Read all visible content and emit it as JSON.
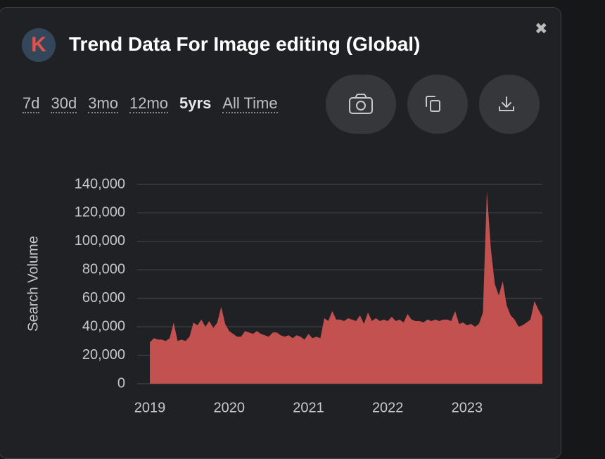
{
  "header": {
    "logo": "K",
    "title": "Trend Data For Image editing (Global)",
    "close": "✖"
  },
  "time_ranges": [
    "7d",
    "30d",
    "3mo",
    "12mo",
    "5yrs",
    "All Time"
  ],
  "chart_data": {
    "type": "area",
    "y_label": "Search Volume",
    "color": "#c25150",
    "grid": true,
    "x": [
      2019.0,
      2019.05,
      2019.1,
      2019.15,
      2019.2,
      2019.25,
      2019.3,
      2019.35,
      2019.4,
      2019.45,
      2019.5,
      2019.55,
      2019.6,
      2019.65,
      2019.7,
      2019.75,
      2019.8,
      2019.85,
      2019.9,
      2019.95,
      2020.0,
      2020.05,
      2020.1,
      2020.15,
      2020.2,
      2020.25,
      2020.3,
      2020.35,
      2020.4,
      2020.45,
      2020.5,
      2020.55,
      2020.6,
      2020.65,
      2020.7,
      2020.75,
      2020.8,
      2020.85,
      2020.9,
      2020.95,
      2021.0,
      2021.05,
      2021.1,
      2021.15,
      2021.2,
      2021.25,
      2021.3,
      2021.35,
      2021.4,
      2021.45,
      2021.5,
      2021.55,
      2021.6,
      2021.65,
      2021.7,
      2021.75,
      2021.8,
      2021.85,
      2021.9,
      2021.95,
      2022.0,
      2022.05,
      2022.1,
      2022.15,
      2022.2,
      2022.25,
      2022.3,
      2022.35,
      2022.4,
      2022.45,
      2022.5,
      2022.55,
      2022.6,
      2022.65,
      2022.7,
      2022.75,
      2022.8,
      2022.85,
      2022.9,
      2022.95,
      2023.0,
      2023.05,
      2023.1,
      2023.15,
      2023.2,
      2023.25,
      2023.3,
      2023.35,
      2023.4,
      2023.45,
      2023.5,
      2023.55,
      2023.6,
      2023.65,
      2023.7,
      2023.75,
      2023.8,
      2023.85,
      2023.9,
      2023.95
    ],
    "values": [
      29000,
      32000,
      31000,
      31000,
      30000,
      32000,
      43000,
      30000,
      31000,
      30000,
      33000,
      43000,
      41000,
      45000,
      40000,
      44000,
      39000,
      43000,
      54000,
      42000,
      37000,
      35000,
      33000,
      33000,
      37000,
      36000,
      35000,
      37000,
      35000,
      34000,
      33000,
      36000,
      36000,
      34000,
      33000,
      34000,
      32000,
      34000,
      33000,
      31000,
      35000,
      32000,
      33000,
      32000,
      46000,
      44000,
      51000,
      45000,
      45000,
      44000,
      46000,
      45000,
      44000,
      48000,
      42000,
      50000,
      44000,
      46000,
      44000,
      45000,
      44000,
      47000,
      44000,
      45000,
      43000,
      49000,
      45000,
      44000,
      44000,
      43000,
      45000,
      44000,
      45000,
      44000,
      45000,
      45000,
      44000,
      51000,
      42000,
      43000,
      41000,
      42000,
      40000,
      42000,
      50000,
      135000,
      95000,
      70000,
      62000,
      72000,
      55000,
      48000,
      45000,
      40000,
      41000,
      43000,
      45000,
      58000,
      52000,
      47000
    ],
    "xlim": [
      2018.84,
      2023.95
    ],
    "xticks": [
      2019,
      2020,
      2021,
      2022,
      2023
    ],
    "ylim": [
      0,
      140000
    ],
    "yticks": [
      0,
      {
        "value": 20000,
        "label": "20,000"
      },
      {
        "value": 40000,
        "label": "40,000"
      },
      {
        "value": 60000,
        "label": "60,000"
      },
      {
        "value": 80000,
        "label": "80,000"
      },
      {
        "value": 100000,
        "label": "100,000"
      },
      {
        "value": 120000,
        "label": "120,000"
      },
      {
        "value": 140000,
        "label": "140,000"
      }
    ]
  }
}
